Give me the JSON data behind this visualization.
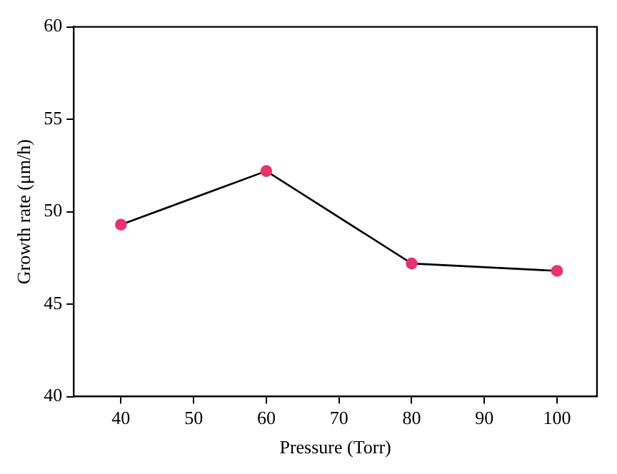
{
  "chart_data": {
    "type": "line",
    "xlabel": "Pressure (Torr)",
    "ylabel": "Growth rate (μm/h)",
    "x": [
      40,
      60,
      80,
      100
    ],
    "series": [
      {
        "color": "#000000",
        "colors": [
          "#e8336e",
          "#e8336e",
          "#e8336e",
          "#e8336e"
        ],
        "values": [
          49.3,
          52.2,
          47.2,
          46.8
        ]
      }
    ],
    "xlim": [
      33.5,
      105.5
    ],
    "xticks": [
      40,
      50,
      60,
      70,
      80,
      90,
      100
    ],
    "ylim": [
      40,
      60
    ],
    "yticks": [
      40,
      45,
      50,
      55,
      60
    ],
    "grid": false,
    "legend": false,
    "marker": "circle",
    "line_style": "solid"
  }
}
